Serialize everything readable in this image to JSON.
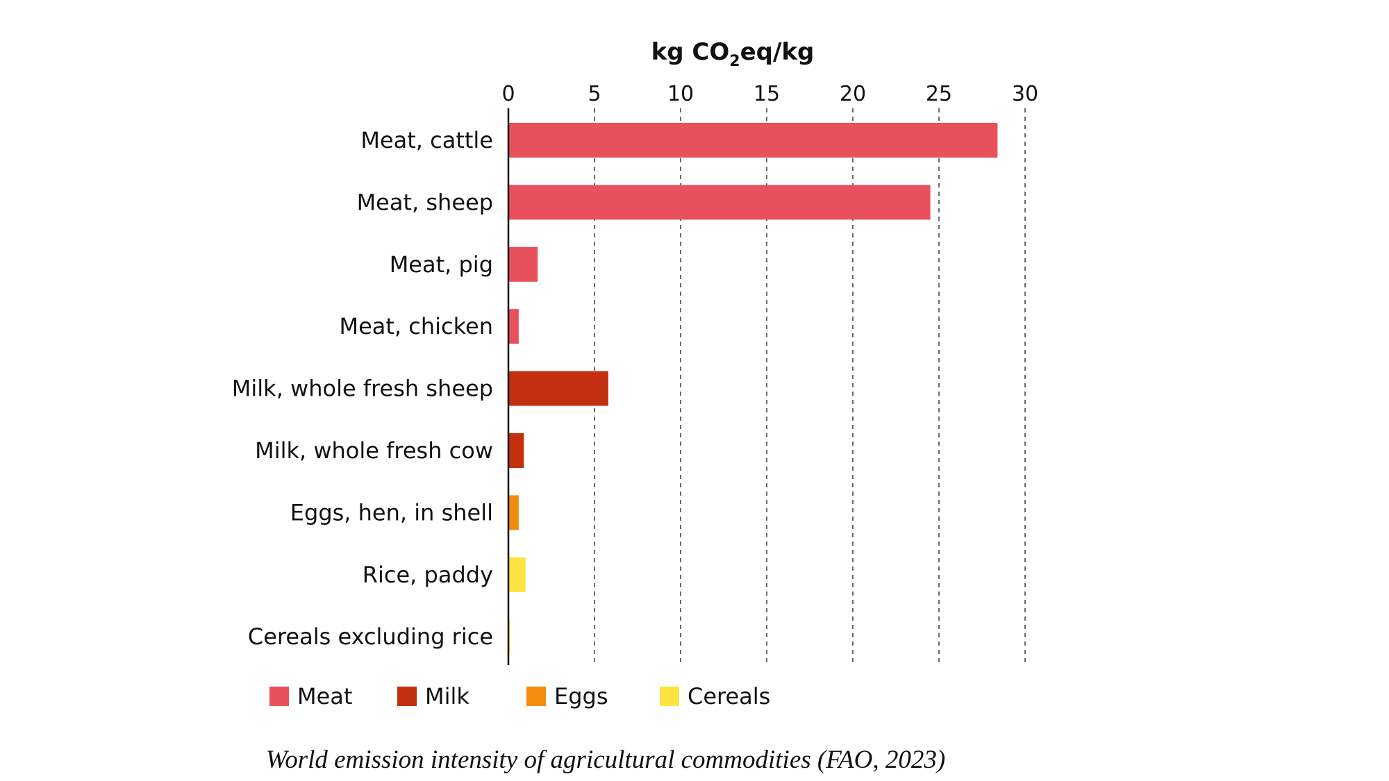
{
  "chart_data": {
    "type": "bar",
    "orientation": "horizontal",
    "xlabel": {
      "prefix": "kg CO",
      "subscript": "2",
      "suffix": "eq/kg"
    },
    "xlim": [
      0,
      30
    ],
    "xticks": [
      0,
      5,
      10,
      15,
      20,
      25,
      30
    ],
    "grid": true,
    "categories": [
      "Meat, cattle",
      "Meat, sheep",
      "Meat, pig",
      "Meat, chicken",
      "Milk, whole fresh sheep",
      "Milk, whole fresh cow",
      "Eggs, hen, in shell",
      "Rice, paddy",
      "Cereals excluding rice"
    ],
    "values": [
      28.4,
      24.5,
      1.7,
      0.6,
      5.8,
      0.9,
      0.6,
      1.0,
      0.1
    ],
    "groups": [
      "Meat",
      "Meat",
      "Meat",
      "Meat",
      "Milk",
      "Milk",
      "Eggs",
      "Cereals",
      "Cereals"
    ],
    "legend": {
      "placement": "bottom",
      "entries": [
        {
          "name": "Meat",
          "color": "#e8505b"
        },
        {
          "name": "Milk",
          "color": "#c2300f"
        },
        {
          "name": "Eggs",
          "color": "#f28c0f"
        },
        {
          "name": "Cereals",
          "color": "#fde440"
        }
      ]
    }
  },
  "caption": "World emission intensity of agricultural commodities (FAO, 2023)"
}
